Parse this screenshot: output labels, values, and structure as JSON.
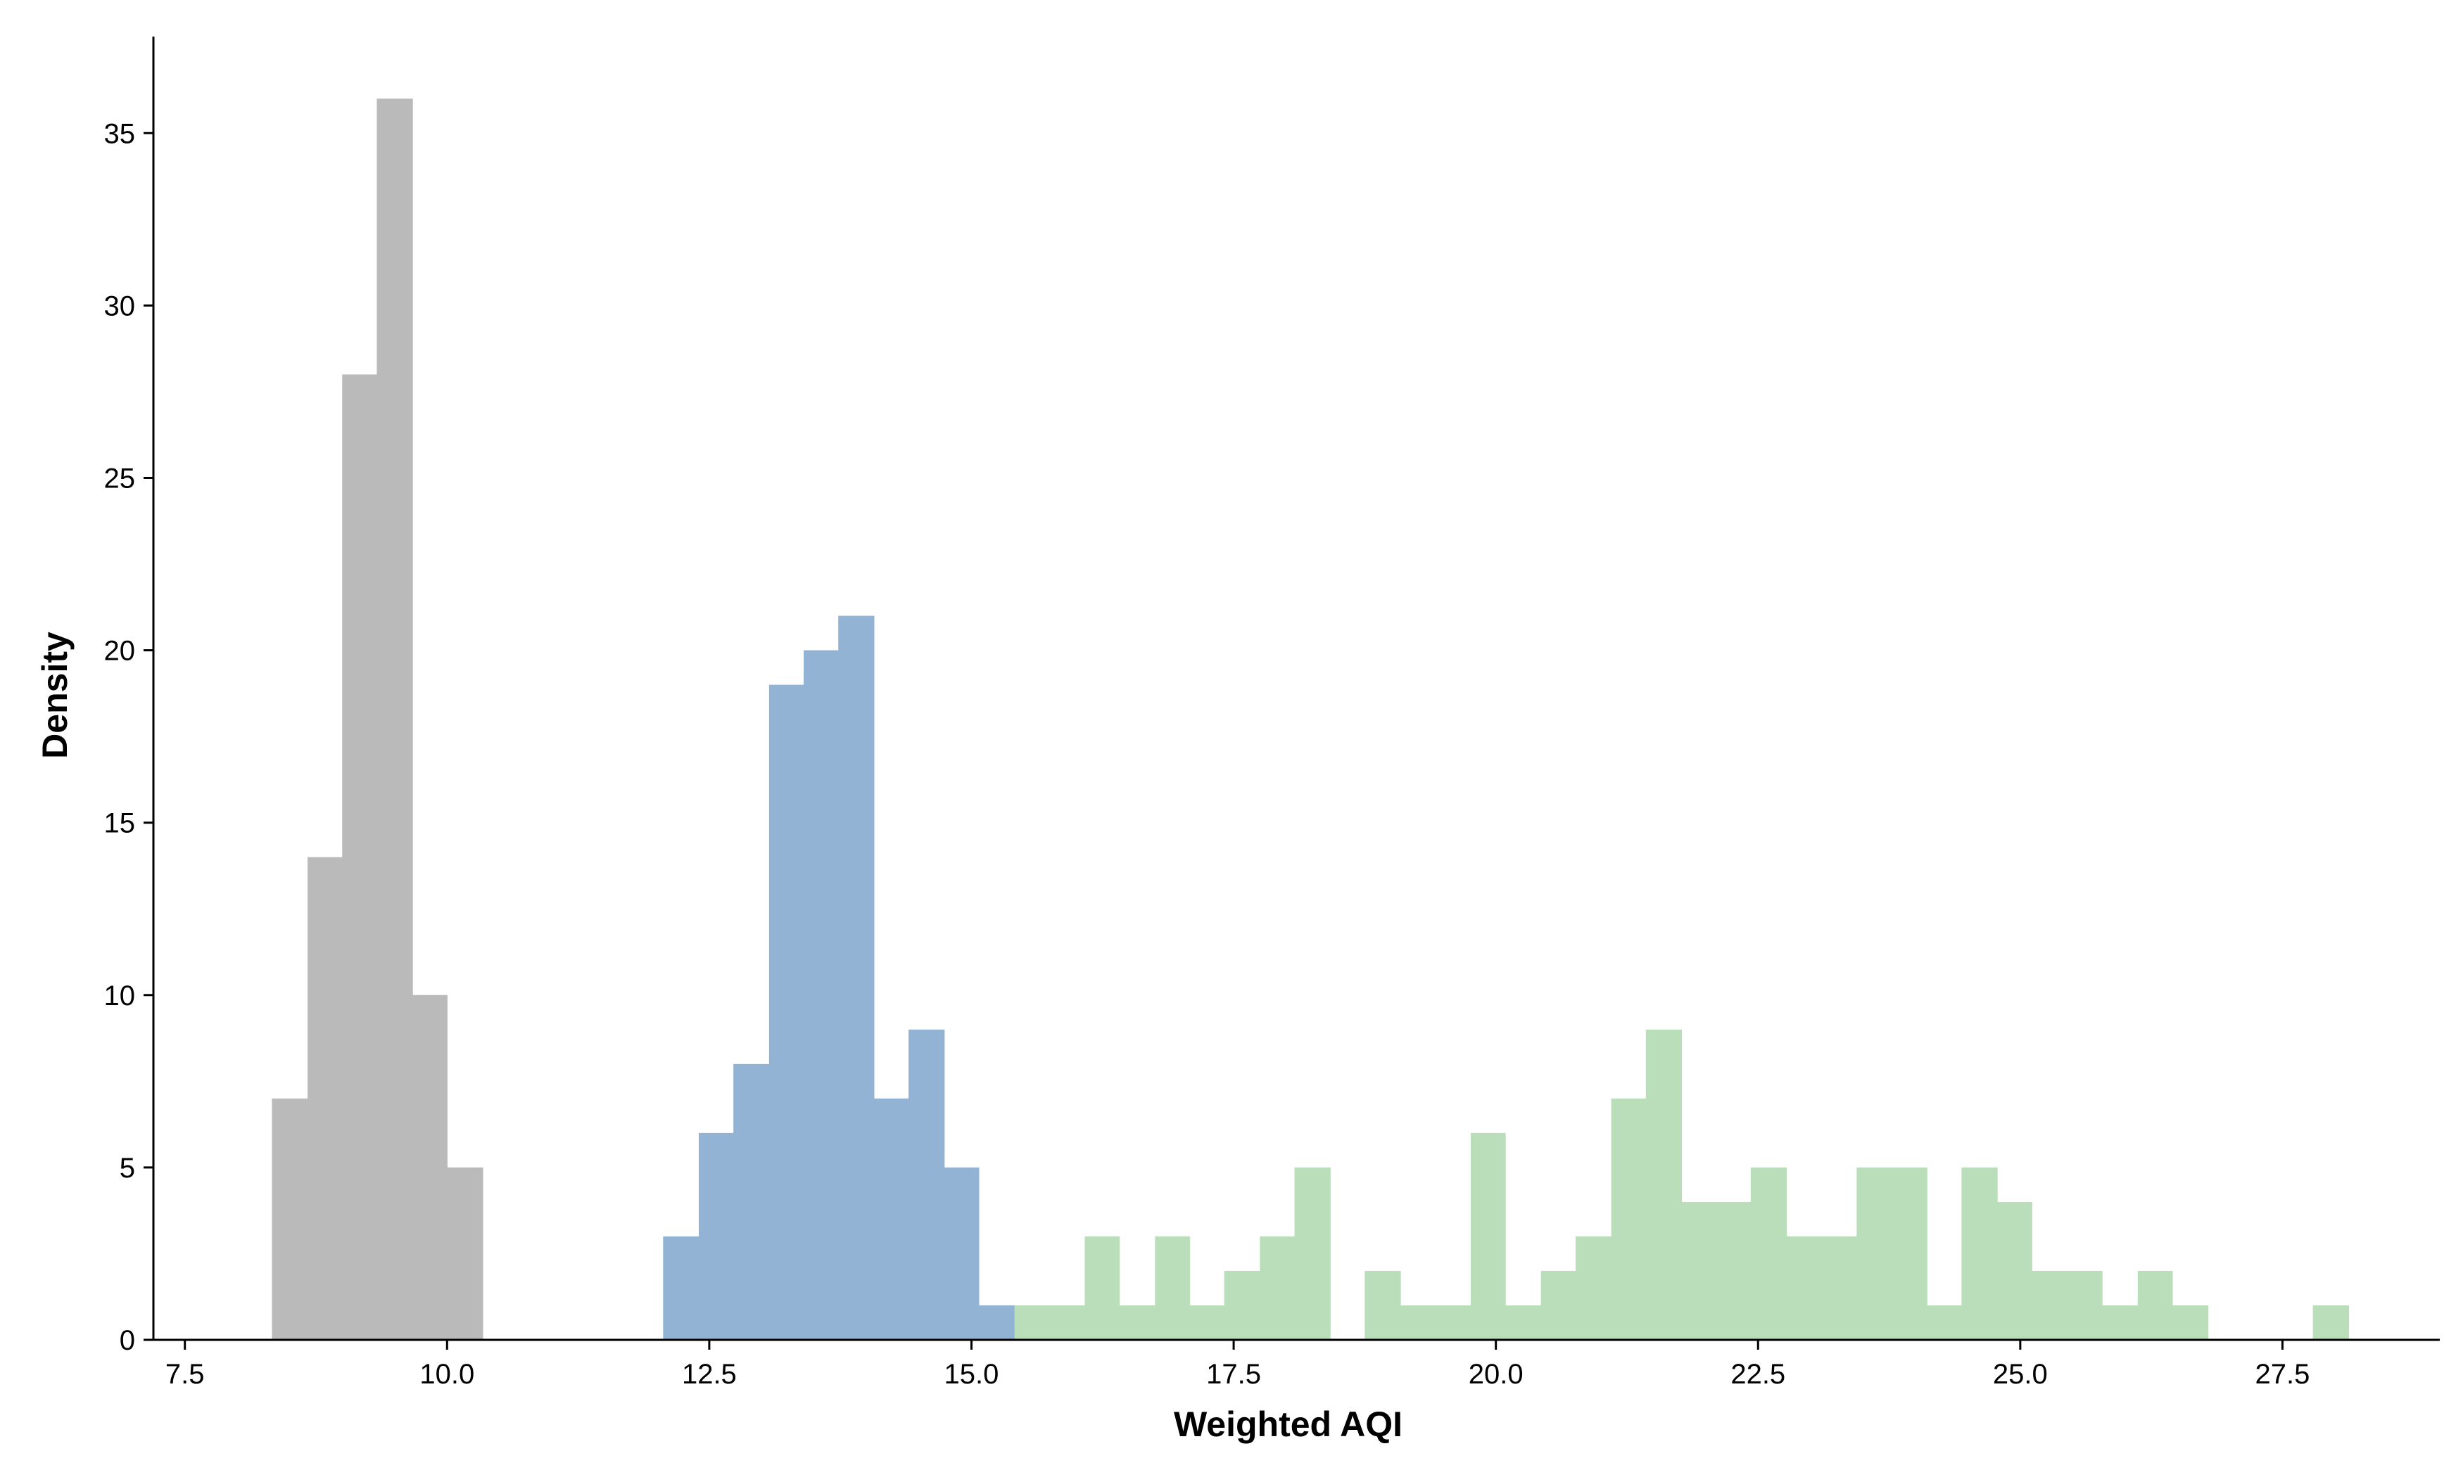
{
  "chart_data": {
    "type": "histogram",
    "title": "",
    "xlabel": "Weighted AQI",
    "ylabel": "Density",
    "xlim": [
      7.2,
      29.0
    ],
    "ylim": [
      0,
      37.8
    ],
    "x_ticks": [
      7.5,
      10.0,
      12.5,
      15.0,
      17.5,
      20.0,
      22.5,
      25.0,
      27.5
    ],
    "x_tick_labels": [
      "7.5",
      "10.0",
      "12.5",
      "15.0",
      "17.5",
      "20.0",
      "22.5",
      "25.0",
      "27.5"
    ],
    "y_ticks": [
      0,
      5,
      10,
      15,
      20,
      25,
      30,
      35
    ],
    "y_tick_labels": [
      "0",
      "5",
      "10",
      "15",
      "20",
      "25",
      "30",
      "35"
    ],
    "grid": false,
    "legend": "none",
    "series": [
      {
        "color": "#bababa",
        "bins": [
          {
            "x0": 8.33,
            "x1": 8.67,
            "value": 7
          },
          {
            "x0": 8.67,
            "x1": 9.0,
            "value": 14
          },
          {
            "x0": 9.0,
            "x1": 9.33,
            "value": 28
          },
          {
            "x0": 9.33,
            "x1": 9.67,
            "value": 36
          },
          {
            "x0": 9.67,
            "x1": 10.0,
            "value": 10
          },
          {
            "x0": 10.0,
            "x1": 10.34,
            "value": 5
          }
        ]
      },
      {
        "color": "#92b3d3",
        "bins": [
          {
            "x0": 12.06,
            "x1": 12.4,
            "value": 3
          },
          {
            "x0": 12.4,
            "x1": 12.73,
            "value": 6
          },
          {
            "x0": 12.73,
            "x1": 13.07,
            "value": 8
          },
          {
            "x0": 13.07,
            "x1": 13.4,
            "value": 19
          },
          {
            "x0": 13.4,
            "x1": 13.73,
            "value": 20
          },
          {
            "x0": 13.73,
            "x1": 14.07,
            "value": 21
          },
          {
            "x0": 14.07,
            "x1": 14.4,
            "value": 7
          },
          {
            "x0": 14.4,
            "x1": 14.74,
            "value": 9
          },
          {
            "x0": 14.74,
            "x1": 15.07,
            "value": 5
          },
          {
            "x0": 15.07,
            "x1": 15.41,
            "value": 1
          }
        ]
      },
      {
        "color": "#b9deb9",
        "bins": [
          {
            "x0": 15.41,
            "x1": 15.74,
            "value": 1
          },
          {
            "x0": 15.74,
            "x1": 16.08,
            "value": 1
          },
          {
            "x0": 16.08,
            "x1": 16.41,
            "value": 3
          },
          {
            "x0": 16.41,
            "x1": 16.75,
            "value": 1
          },
          {
            "x0": 16.75,
            "x1": 17.08,
            "value": 3
          },
          {
            "x0": 17.08,
            "x1": 17.41,
            "value": 1
          },
          {
            "x0": 17.41,
            "x1": 17.75,
            "value": 2
          },
          {
            "x0": 17.75,
            "x1": 18.08,
            "value": 3
          },
          {
            "x0": 18.08,
            "x1": 18.42,
            "value": 5
          },
          {
            "x0": 18.75,
            "x1": 19.09,
            "value": 2
          },
          {
            "x0": 19.09,
            "x1": 19.42,
            "value": 1
          },
          {
            "x0": 19.42,
            "x1": 19.76,
            "value": 1
          },
          {
            "x0": 19.76,
            "x1": 20.09,
            "value": 6
          },
          {
            "x0": 20.09,
            "x1": 20.43,
            "value": 1
          },
          {
            "x0": 20.43,
            "x1": 20.76,
            "value": 2
          },
          {
            "x0": 20.76,
            "x1": 21.1,
            "value": 3
          },
          {
            "x0": 21.1,
            "x1": 21.43,
            "value": 7
          },
          {
            "x0": 21.43,
            "x1": 21.77,
            "value": 9
          },
          {
            "x0": 21.77,
            "x1": 22.1,
            "value": 4
          },
          {
            "x0": 22.1,
            "x1": 22.43,
            "value": 4
          },
          {
            "x0": 22.43,
            "x1": 22.77,
            "value": 5
          },
          {
            "x0": 22.77,
            "x1": 23.1,
            "value": 3
          },
          {
            "x0": 23.1,
            "x1": 23.44,
            "value": 3
          },
          {
            "x0": 23.44,
            "x1": 23.77,
            "value": 5
          },
          {
            "x0": 23.77,
            "x1": 24.11,
            "value": 5
          },
          {
            "x0": 24.11,
            "x1": 24.44,
            "value": 1
          },
          {
            "x0": 24.44,
            "x1": 24.78,
            "value": 5
          },
          {
            "x0": 24.78,
            "x1": 25.11,
            "value": 4
          },
          {
            "x0": 25.11,
            "x1": 25.45,
            "value": 2
          },
          {
            "x0": 25.45,
            "x1": 25.78,
            "value": 2
          },
          {
            "x0": 25.78,
            "x1": 26.12,
            "value": 1
          },
          {
            "x0": 26.12,
            "x1": 26.45,
            "value": 2
          },
          {
            "x0": 26.45,
            "x1": 26.79,
            "value": 1
          },
          {
            "x0": 27.79,
            "x1": 28.13,
            "value": 1
          }
        ]
      }
    ]
  }
}
